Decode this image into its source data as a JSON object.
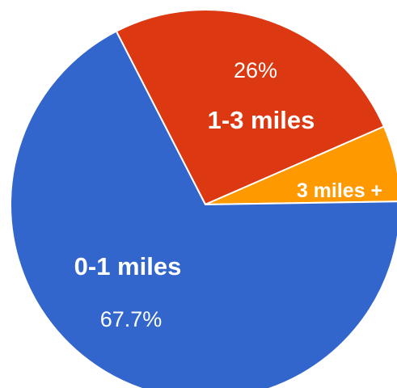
{
  "chart_data": {
    "type": "pie",
    "start_angle_deg": -27.2,
    "direction": "clockwise",
    "slices": [
      {
        "label": "1-3 miles",
        "value": 26.0,
        "value_label": "26%",
        "color": "#dc3912"
      },
      {
        "label": "3 miles +",
        "value": 6.3,
        "value_label": "",
        "color": "#ff9900"
      },
      {
        "label": "0-1 miles",
        "value": 67.7,
        "value_label": "67.7%",
        "color": "#3366cc"
      }
    ],
    "legend": "none"
  }
}
